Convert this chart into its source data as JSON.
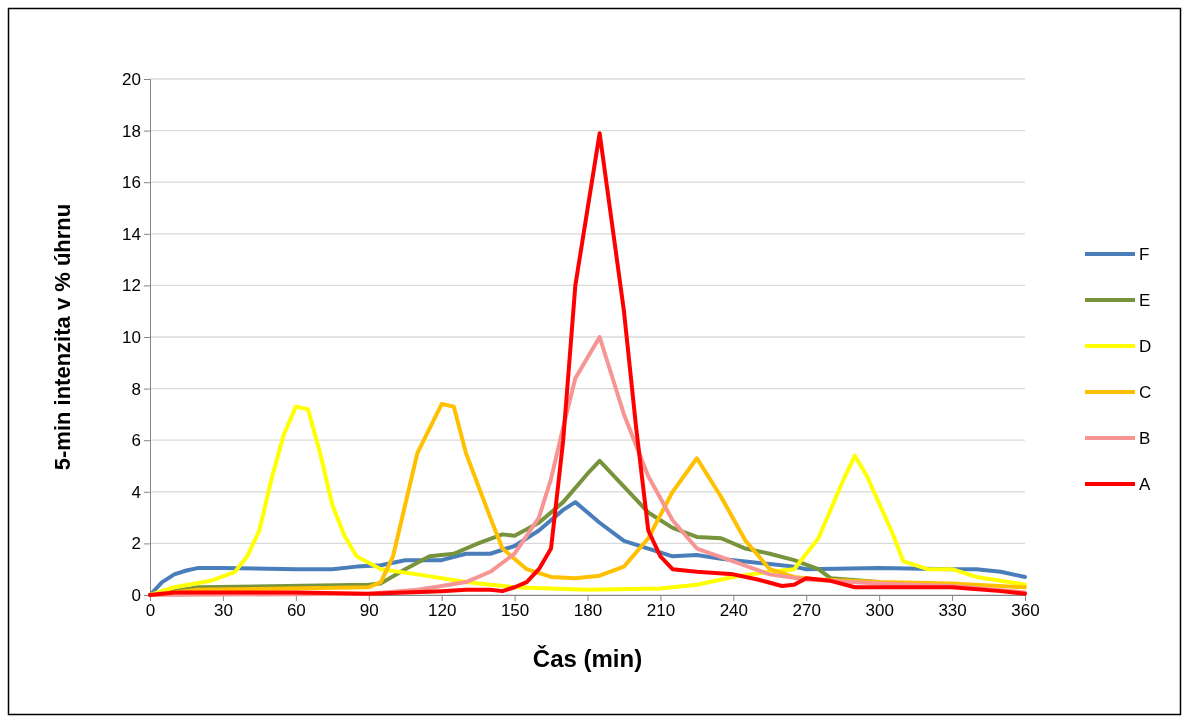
{
  "chart_data": {
    "type": "line",
    "xlabel": "Čas (min)",
    "ylabel": "5-min intenzita v % úhrnu",
    "xlim": [
      0,
      360
    ],
    "xticks": [
      0,
      30,
      60,
      90,
      120,
      150,
      180,
      210,
      240,
      270,
      300,
      330,
      360
    ],
    "ylim": [
      0,
      20
    ],
    "yticks": [
      0,
      2,
      4,
      6,
      8,
      10,
      12,
      14,
      16,
      18,
      20
    ],
    "grid": "y",
    "legend": "right",
    "marker": "none",
    "line_style": "solid",
    "series": [
      {
        "name": "F",
        "color": "#4a7ebb",
        "x": [
          0,
          5,
          10,
          15,
          20,
          30,
          60,
          75,
          85,
          95,
          105,
          120,
          130,
          140,
          150,
          160,
          170,
          175,
          185,
          195,
          205,
          215,
          225,
          235,
          245,
          255,
          265,
          270,
          300,
          330,
          340,
          350,
          360
        ],
        "values": [
          0,
          0.5,
          0.8,
          0.95,
          1.05,
          1.05,
          1.0,
          1.0,
          1.1,
          1.15,
          1.35,
          1.35,
          1.6,
          1.6,
          1.9,
          2.5,
          3.3,
          3.6,
          2.8,
          2.1,
          1.8,
          1.5,
          1.55,
          1.4,
          1.3,
          1.2,
          1.1,
          1.0,
          1.05,
          1.0,
          1.0,
          0.9,
          0.7
        ]
      },
      {
        "name": "E",
        "color": "#77933c",
        "x": [
          0,
          20,
          90,
          95,
          105,
          115,
          125,
          135,
          145,
          150,
          160,
          170,
          180,
          185,
          195,
          205,
          215,
          225,
          235,
          245,
          255,
          265,
          275,
          280,
          300
        ],
        "values": [
          0,
          0.3,
          0.4,
          0.45,
          1.0,
          1.5,
          1.6,
          2.0,
          2.35,
          2.3,
          2.8,
          3.6,
          4.7,
          5.2,
          4.2,
          3.2,
          2.6,
          2.25,
          2.2,
          1.8,
          1.6,
          1.35,
          1.0,
          0.65,
          0.5
        ]
      },
      {
        "name": "D",
        "color": "#ffff00",
        "x": [
          0,
          10,
          25,
          35,
          40,
          45,
          50,
          55,
          60,
          65,
          70,
          75,
          80,
          85,
          95,
          110,
          130,
          150,
          180,
          210,
          225,
          240,
          255,
          265,
          275,
          285,
          290,
          295,
          305,
          310,
          320,
          330,
          340,
          360
        ],
        "values": [
          0,
          0.3,
          0.55,
          0.9,
          1.5,
          2.5,
          4.5,
          6.2,
          7.3,
          7.2,
          5.5,
          3.5,
          2.3,
          1.5,
          1.0,
          0.8,
          0.5,
          0.3,
          0.2,
          0.25,
          0.4,
          0.7,
          0.9,
          1.0,
          2.2,
          4.4,
          5.4,
          4.6,
          2.5,
          1.3,
          1.0,
          1.0,
          0.7,
          0.4
        ]
      },
      {
        "name": "C",
        "color": "#ffc000",
        "x": [
          0,
          20,
          90,
          95,
          100,
          105,
          110,
          120,
          125,
          130,
          140,
          145,
          155,
          165,
          175,
          185,
          195,
          205,
          215,
          225,
          235,
          245,
          255,
          265,
          275,
          300,
          330,
          360
        ],
        "values": [
          0,
          0.2,
          0.3,
          0.5,
          1.5,
          3.5,
          5.5,
          7.4,
          7.3,
          5.5,
          3.0,
          1.8,
          1.0,
          0.7,
          0.65,
          0.75,
          1.1,
          2.2,
          4.0,
          5.3,
          3.8,
          2.1,
          1.0,
          0.7,
          0.6,
          0.5,
          0.45,
          0.3
        ]
      },
      {
        "name": "B",
        "color": "#f79494",
        "x": [
          0,
          90,
          110,
          120,
          130,
          140,
          150,
          160,
          165,
          170,
          175,
          185,
          195,
          205,
          215,
          225,
          240,
          255,
          270,
          300,
          330,
          360
        ],
        "values": [
          0,
          0.05,
          0.2,
          0.35,
          0.5,
          0.9,
          1.6,
          3.0,
          4.5,
          6.5,
          8.4,
          10.0,
          7.0,
          4.6,
          2.9,
          1.8,
          1.3,
          0.8,
          0.6,
          0.45,
          0.35,
          0.1
        ]
      },
      {
        "name": "A",
        "color": "#ff0000",
        "x": [
          0,
          10,
          60,
          90,
          120,
          130,
          140,
          145,
          150,
          155,
          160,
          165,
          170,
          175,
          185,
          195,
          200,
          205,
          210,
          215,
          225,
          240,
          250,
          260,
          265,
          270,
          280,
          290,
          330,
          350,
          360
        ],
        "values": [
          0,
          0.1,
          0.1,
          0.05,
          0.15,
          0.2,
          0.2,
          0.15,
          0.3,
          0.5,
          1.0,
          1.8,
          6.0,
          12.0,
          17.9,
          11.0,
          6.5,
          2.5,
          1.5,
          1.0,
          0.9,
          0.8,
          0.6,
          0.35,
          0.4,
          0.65,
          0.55,
          0.3,
          0.3,
          0.15,
          0.05
        ]
      }
    ]
  }
}
